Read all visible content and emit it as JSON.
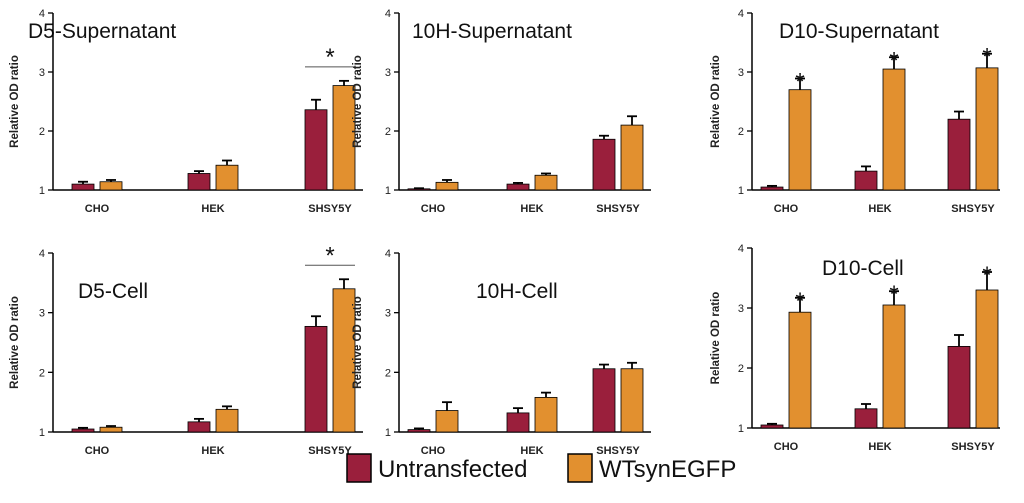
{
  "chart_data": {
    "type": "bar",
    "series_colors": {
      "Untransfected": "#9a1f3c",
      "WTsynEGFP": "#e2902f"
    },
    "legend": {
      "placement": "bottom-center",
      "entries": [
        "Untransfected",
        "WTsynEGFP"
      ]
    },
    "significance_marker": "*",
    "panels": [
      {
        "title": "D5-Supernatant",
        "ylabel": "Relative OD ratio",
        "ylim": [
          1,
          4
        ],
        "yticks": [
          "1",
          "2",
          "3",
          "4"
        ],
        "categories": [
          "CHO",
          "HEK",
          "SHSY5Y"
        ],
        "series": [
          {
            "name": "Untransfected",
            "values": [
              1.1,
              1.28,
              2.36
            ],
            "errors": [
              0.04,
              0.04,
              0.17
            ]
          },
          {
            "name": "WTsynEGFP",
            "values": [
              1.14,
              1.42,
              2.77
            ],
            "errors": [
              0.03,
              0.08,
              0.08
            ]
          }
        ],
        "significance": {
          "type": "bracket",
          "category_index": 2
        }
      },
      {
        "title": "10H-Supernatant",
        "ylabel": "Relative OD ratio",
        "ylim": [
          1,
          4
        ],
        "yticks": [
          "1",
          "2",
          "3",
          "4"
        ],
        "categories": [
          "CHO",
          "HEK",
          "SHSY5Y"
        ],
        "series": [
          {
            "name": "Untransfected",
            "values": [
              1.02,
              1.1,
              1.86
            ],
            "errors": [
              0.01,
              0.02,
              0.06
            ]
          },
          {
            "name": "WTsynEGFP",
            "values": [
              1.13,
              1.25,
              2.1
            ],
            "errors": [
              0.04,
              0.03,
              0.15
            ]
          }
        ],
        "significance": null
      },
      {
        "title": "D10-Supernatant",
        "ylabel": "Relative OD ratio",
        "ylim": [
          1,
          4
        ],
        "yticks": [
          "1",
          "2",
          "3",
          "4"
        ],
        "categories": [
          "CHO",
          "HEK",
          "SHSY5Y"
        ],
        "series": [
          {
            "name": "Untransfected",
            "values": [
              1.05,
              1.32,
              2.2
            ],
            "errors": [
              0.02,
              0.08,
              0.13
            ]
          },
          {
            "name": "WTsynEGFP",
            "values": [
              2.7,
              3.05,
              3.07
            ],
            "errors": [
              0.19,
              0.2,
              0.24
            ]
          }
        ],
        "significance": {
          "type": "per_bar",
          "series_index": 1,
          "category_indices": [
            0,
            1,
            2
          ]
        }
      },
      {
        "title": "D5-Cell",
        "ylabel": "Relative OD ratio",
        "ylim": [
          1,
          4
        ],
        "yticks": [
          "1",
          "2",
          "3",
          "4"
        ],
        "categories": [
          "CHO",
          "HEK",
          "SHSY5Y"
        ],
        "series": [
          {
            "name": "Untransfected",
            "values": [
              1.05,
              1.17,
              2.77
            ],
            "errors": [
              0.02,
              0.05,
              0.17
            ]
          },
          {
            "name": "WTsynEGFP",
            "values": [
              1.08,
              1.38,
              3.4
            ],
            "errors": [
              0.02,
              0.05,
              0.16
            ]
          }
        ],
        "significance": {
          "type": "bracket",
          "category_index": 2
        }
      },
      {
        "title": "10H-Cell",
        "ylabel": "Relative OD ratio",
        "ylim": [
          1,
          4
        ],
        "yticks": [
          "1",
          "2",
          "3",
          "4"
        ],
        "categories": [
          "CHO",
          "HEK",
          "SHSY5Y"
        ],
        "series": [
          {
            "name": "Untransfected",
            "values": [
              1.04,
              1.32,
              2.06
            ],
            "errors": [
              0.02,
              0.08,
              0.07
            ]
          },
          {
            "name": "WTsynEGFP",
            "values": [
              1.36,
              1.58,
              2.06
            ],
            "errors": [
              0.14,
              0.08,
              0.1
            ]
          }
        ],
        "significance": null
      },
      {
        "title": "D10-Cell",
        "ylabel": "Relative OD ratio",
        "ylim": [
          1,
          4
        ],
        "yticks": [
          "1",
          "2",
          "3",
          "4"
        ],
        "categories": [
          "CHO",
          "HEK",
          "SHSY5Y"
        ],
        "series": [
          {
            "name": "Untransfected",
            "values": [
              1.05,
              1.32,
              2.36
            ],
            "errors": [
              0.02,
              0.08,
              0.19
            ]
          },
          {
            "name": "WTsynEGFP",
            "values": [
              2.93,
              3.05,
              3.3
            ],
            "errors": [
              0.24,
              0.23,
              0.3
            ]
          }
        ],
        "significance": {
          "type": "per_bar",
          "series_index": 1,
          "category_indices": [
            0,
            1,
            2
          ]
        }
      }
    ]
  }
}
